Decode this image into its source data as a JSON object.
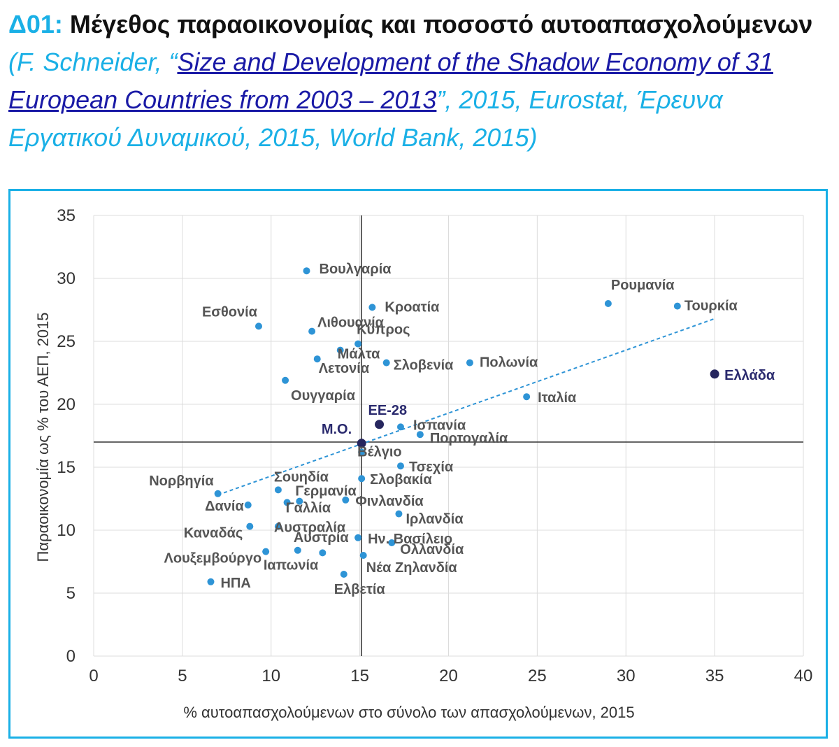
{
  "header": {
    "number": "Δ01:",
    "title": "Μέγεθος παραοικονομίας και ποσοστό αυτοαπασχολούμενων",
    "source_open": "(F. Schneider, “",
    "source_link": "Size and Development of the Shadow Economy of 31 European Countries from 2003 – 2013",
    "source_rest": "”, 2015, Eurostat, Έρευνα Εργατικού Δυναμικού, 2015, World Bank, 2015)"
  },
  "chart_data": {
    "type": "scatter",
    "title": "",
    "xlabel": "% αυτοαπασχολούμενων στο σύνολο των απασχολούμενων, 2015",
    "ylabel": "Παραοικονομία ως % του ΑΕΠ, 2015",
    "xlim": [
      0,
      40
    ],
    "ylim": [
      0,
      35
    ],
    "xticks": [
      0,
      5,
      10,
      15,
      20,
      25,
      30,
      35,
      40
    ],
    "yticks": [
      0,
      5,
      10,
      15,
      20,
      25,
      30,
      35
    ],
    "grid": true,
    "colors": {
      "point": "#2e94d6",
      "highlight": "#26265e",
      "trend": "#2e94d6",
      "axis_cross": "#333333"
    },
    "mean_lines": {
      "x": 15.1,
      "y": 17.0
    },
    "trendline": {
      "x": [
        7.0,
        35.0
      ],
      "y": [
        12.8,
        26.8
      ]
    },
    "points": [
      {
        "label": "Βουλγαρία",
        "x": 12.0,
        "y": 30.6
      },
      {
        "label": "Ρουμανία",
        "x": 29.0,
        "y": 28.0
      },
      {
        "label": "Τουρκία",
        "x": 32.9,
        "y": 27.8
      },
      {
        "label": "Κροατία",
        "x": 15.7,
        "y": 27.7
      },
      {
        "label": "Εσθονία",
        "x": 9.3,
        "y": 26.2
      },
      {
        "label": "Λιθουανία",
        "x": 12.3,
        "y": 25.8
      },
      {
        "label": "Κύπρος",
        "x": 14.9,
        "y": 24.8
      },
      {
        "label": "Μάλτα",
        "x": 13.9,
        "y": 24.3
      },
      {
        "label": "Λετονία",
        "x": 12.6,
        "y": 23.6
      },
      {
        "label": "Σλοβενία",
        "x": 16.5,
        "y": 23.3
      },
      {
        "label": "Πολωνία",
        "x": 21.2,
        "y": 23.3
      },
      {
        "label": "Ελλάδα",
        "x": 35.0,
        "y": 22.4,
        "highlight": true
      },
      {
        "label": "Ουγγαρία",
        "x": 10.8,
        "y": 21.9
      },
      {
        "label": "Ιταλία",
        "x": 24.4,
        "y": 20.6
      },
      {
        "label": "ΕΕ-28",
        "x": 16.1,
        "y": 18.4,
        "highlight": true
      },
      {
        "label": "Ισπανία",
        "x": 17.3,
        "y": 18.2
      },
      {
        "label": "Πορτογαλία",
        "x": 18.4,
        "y": 17.6
      },
      {
        "label": "Μ.Ο.",
        "x": 15.1,
        "y": 16.9,
        "highlight": true
      },
      {
        "label": "Βέλγιο",
        "x": 15.1,
        "y": 16.2
      },
      {
        "label": "Τσεχία",
        "x": 17.3,
        "y": 15.1
      },
      {
        "label": "Σλοβακία",
        "x": 15.1,
        "y": 14.1
      },
      {
        "label": "Σουηδία",
        "x": 10.4,
        "y": 13.2
      },
      {
        "label": "Νορβηγία",
        "x": 7.0,
        "y": 12.9
      },
      {
        "label": "Γερμανία",
        "x": 11.6,
        "y": 12.3
      },
      {
        "label": "Φινλανδία",
        "x": 14.2,
        "y": 12.4
      },
      {
        "label": "Γαλλία",
        "x": 10.9,
        "y": 12.2
      },
      {
        "label": "Δανία",
        "x": 8.7,
        "y": 12.0
      },
      {
        "label": "Ιρλανδία",
        "x": 17.2,
        "y": 11.3
      },
      {
        "label": "Καναδάς",
        "x": 8.8,
        "y": 10.3
      },
      {
        "label": "Αυστραλία",
        "x": 10.4,
        "y": 10.3
      },
      {
        "label": "Ην. Βασίλειο",
        "x": 14.9,
        "y": 9.4
      },
      {
        "label": "Ολλανδία",
        "x": 16.8,
        "y": 9.0
      },
      {
        "label": "Αυστρία",
        "x": 11.5,
        "y": 8.4
      },
      {
        "label": "Λουξεμβούργο",
        "x": 9.7,
        "y": 8.3
      },
      {
        "label": "Ιαπωνία",
        "x": 12.9,
        "y": 8.2
      },
      {
        "label": "Νέα Ζηλανδία",
        "x": 15.2,
        "y": 8.0
      },
      {
        "label": "ΗΠΑ",
        "x": 6.6,
        "y": 5.9
      },
      {
        "label": "Ελβετία",
        "x": 14.1,
        "y": 6.5
      }
    ]
  }
}
